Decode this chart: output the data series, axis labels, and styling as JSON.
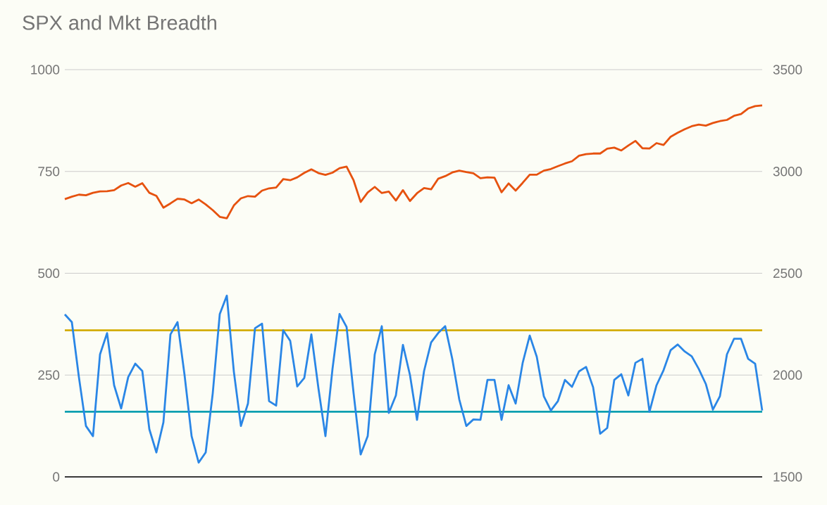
{
  "chart_data": {
    "type": "line",
    "title": "SPX and Mkt Breadth",
    "categories": [
      null,
      null,
      null,
      null,
      null,
      null,
      null,
      null,
      null,
      null,
      null,
      null,
      null,
      null,
      null,
      null,
      null,
      null,
      null,
      null,
      null,
      null,
      null,
      null,
      null,
      null,
      null,
      null,
      null,
      null,
      null,
      null,
      null,
      null,
      null,
      null,
      null,
      null,
      null,
      null,
      null,
      null,
      null,
      null,
      null,
      null,
      null,
      null,
      null,
      null,
      null,
      null,
      null,
      null,
      null,
      null,
      null,
      null,
      null,
      null,
      null,
      null,
      null,
      null,
      null,
      null,
      null,
      null,
      null,
      null,
      null,
      null,
      null,
      null,
      null,
      null,
      null,
      null,
      null,
      null,
      null,
      null,
      null,
      null,
      null,
      null,
      null,
      null,
      null,
      null,
      null,
      null,
      null,
      null,
      null,
      null,
      null,
      null,
      null,
      null
    ],
    "series": [
      {
        "color": "#e6520f",
        "axis": "y2",
        "values": [
          2864,
          2876,
          2886,
          2883,
          2895,
          2902,
          2903,
          2908,
          2931,
          2943,
          2925,
          2942,
          2895,
          2880,
          2822,
          2843,
          2866,
          2862,
          2844,
          2862,
          2838,
          2810,
          2777,
          2770,
          2833,
          2868,
          2879,
          2876,
          2906,
          2917,
          2921,
          2962,
          2957,
          2971,
          2993,
          3010,
          2992,
          2983,
          2994,
          3016,
          3024,
          2956,
          2850,
          2897,
          2924,
          2894,
          2901,
          2857,
          2908,
          2855,
          2893,
          2918,
          2912,
          2964,
          2977,
          2995,
          3004,
          2997,
          2991,
          2967,
          2971,
          2969,
          2898,
          2941,
          2906,
          2944,
          2984,
          2984,
          3004,
          3012,
          3026,
          3039,
          3050,
          3077,
          3085,
          3088,
          3088,
          3112,
          3117,
          3103,
          3127,
          3150,
          3114,
          3113,
          3139,
          3130,
          3170,
          3190,
          3207,
          3222,
          3230,
          3225,
          3238,
          3247,
          3253,
          3273,
          3282,
          3309,
          3321,
          3324
        ]
      },
      {
        "color": "#2a86e6",
        "values": [
          399,
          380,
          245,
          125,
          100,
          301,
          353,
          225,
          168,
          245,
          278,
          260,
          117,
          60,
          134,
          350,
          380,
          250,
          100,
          35,
          60,
          205,
          400,
          445,
          258,
          125,
          180,
          365,
          376,
          186,
          175,
          360,
          334,
          222,
          243,
          350,
          218,
          100,
          265,
          400,
          368,
          205,
          55,
          100,
          301,
          370,
          157,
          200,
          324,
          250,
          140,
          260,
          330,
          353,
          370,
          290,
          190,
          125,
          141,
          140,
          238,
          238,
          140,
          225,
          180,
          280,
          347,
          295,
          198,
          163,
          186,
          238,
          221,
          259,
          270,
          220,
          106,
          120,
          238,
          252,
          200,
          280,
          290,
          160,
          225,
          262,
          311,
          325,
          308,
          296,
          265,
          228,
          165,
          198,
          301,
          339,
          339,
          290,
          278,
          163
        ]
      }
    ],
    "ylim": [
      0,
      1000
    ],
    "yticks": [
      0,
      250,
      500,
      750,
      1000
    ],
    "y2lim": [
      1500,
      3500
    ],
    "y2ticks": [
      1500,
      2000,
      2500,
      3000,
      3500
    ],
    "grid": "y",
    "ref_lines": [
      {
        "axis": "y",
        "value": 360,
        "color": "#d4ad00"
      },
      {
        "axis": "y",
        "value": 160,
        "color": "#0a9fb0"
      }
    ]
  }
}
